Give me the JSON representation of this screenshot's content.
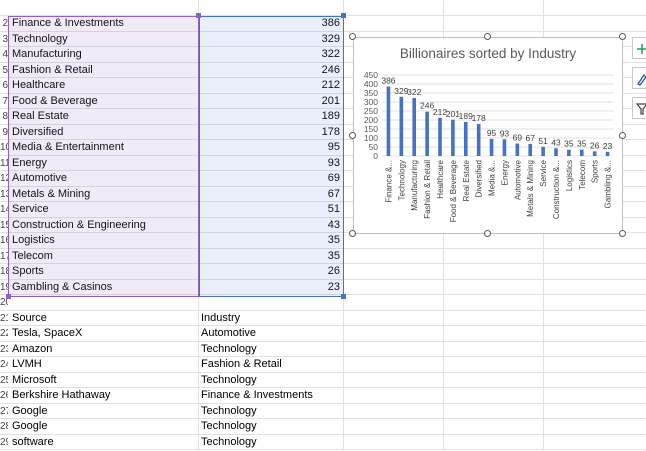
{
  "sheet": {
    "rows": [
      {
        "row_label": "2",
        "a": "Finance & Investments",
        "b": "386"
      },
      {
        "row_label": "3",
        "a": "Technology",
        "b": "329"
      },
      {
        "row_label": "4",
        "a": "Manufacturing",
        "b": "322"
      },
      {
        "row_label": "5",
        "a": "Fashion & Retail",
        "b": "246"
      },
      {
        "row_label": "6",
        "a": "Healthcare",
        "b": "212"
      },
      {
        "row_label": "7",
        "a": "Food & Beverage",
        "b": "201"
      },
      {
        "row_label": "8",
        "a": "Real Estate",
        "b": "189"
      },
      {
        "row_label": "9",
        "a": "Diversified",
        "b": "178"
      },
      {
        "row_label": "10",
        "a": "Media & Entertainment",
        "b": "95"
      },
      {
        "row_label": "11",
        "a": "Energy",
        "b": "93"
      },
      {
        "row_label": "12",
        "a": "Automotive",
        "b": "69"
      },
      {
        "row_label": "13",
        "a": "Metals & Mining",
        "b": "67"
      },
      {
        "row_label": "14",
        "a": "Service",
        "b": "51"
      },
      {
        "row_label": "15",
        "a": "Construction & Engineering",
        "b": "43"
      },
      {
        "row_label": "16",
        "a": "Logistics",
        "b": "35"
      },
      {
        "row_label": "17",
        "a": "Telecom",
        "b": "35"
      },
      {
        "row_label": "18",
        "a": "Sports",
        "b": "26"
      },
      {
        "row_label": "19",
        "a": "Gambling & Casinos",
        "b": "23"
      },
      {
        "row_label": "20",
        "a": "",
        "b": ""
      },
      {
        "row_label": "21",
        "a": "Source",
        "b": "Industry"
      },
      {
        "row_label": "22",
        "a": "Tesla, SpaceX",
        "b": "Automotive"
      },
      {
        "row_label": "23",
        "a": "Amazon",
        "b": "Technology"
      },
      {
        "row_label": "24",
        "a": "LVMH",
        "b": "Fashion & Retail"
      },
      {
        "row_label": "25",
        "a": "Microsoft",
        "b": "Technology"
      },
      {
        "row_label": "26",
        "a": "Berkshire Hathaway",
        "b": "Finance & Investments"
      },
      {
        "row_label": "27",
        "a": "Google",
        "b": "Technology"
      },
      {
        "row_label": "28",
        "a": "Google",
        "b": "Technology"
      },
      {
        "row_label": "29",
        "a": "software",
        "b": "Technology"
      }
    ]
  },
  "chart_data": {
    "type": "bar",
    "title": "Billionaires sorted by Industry",
    "categories": [
      "Finance &...",
      "Technology",
      "Manufacturing",
      "Fashion & Retail",
      "Healthcare",
      "Food & Beverage",
      "Real Estate",
      "Diversified",
      "Media &...",
      "Energy",
      "Automotive",
      "Metals & Mining",
      "Service",
      "Construction &...",
      "Logistics",
      "Telecom",
      "Sports",
      "Gambling &..."
    ],
    "values": [
      386,
      329,
      322,
      246,
      212,
      201,
      189,
      178,
      95,
      93,
      69,
      67,
      51,
      43,
      35,
      35,
      26,
      23
    ],
    "yticks": [
      "450",
      "400",
      "350",
      "300",
      "250",
      "200",
      "150",
      "100",
      "50",
      "0"
    ],
    "ylim": [
      0,
      450
    ],
    "grid": true,
    "bar_color": "#4472c4"
  },
  "colors": {
    "selection_a": "#8a62c9",
    "selection_b": "#4472c4",
    "chart_title": "#595959"
  },
  "side_buttons": [
    "chart-elements-icon",
    "chart-styles-icon",
    "chart-filters-icon"
  ]
}
